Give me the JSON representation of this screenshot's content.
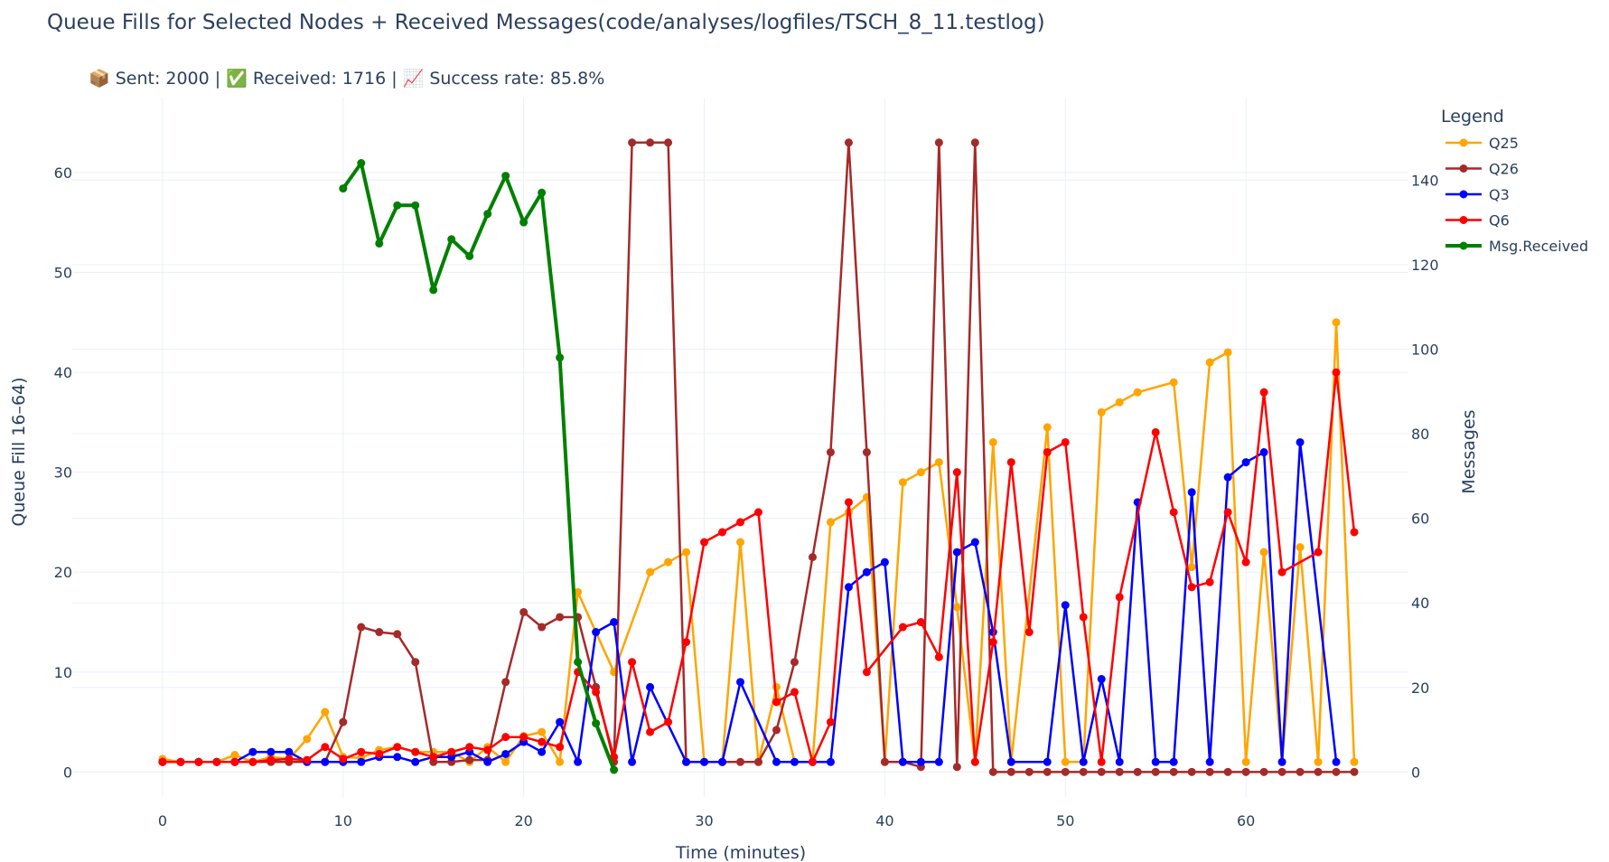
{
  "chart_data": {
    "type": "line",
    "title": "Queue Fills for Selected Nodes + Received Messages(code/analyses/logfiles/TSCH_8_11.testlog)",
    "subtitle": "📦 Sent: 2000 | ✅ Received: 1716 | 📈 Success rate: 85.8%",
    "xlabel": "Time (minutes)",
    "ylabel": "Queue Fill 16–64)",
    "y2label": "Messages",
    "xlim": [
      -5,
      69
    ],
    "ylim": [
      -2.5,
      67.5
    ],
    "y2lim": [
      -5.9,
      159.5
    ],
    "x_ticks": [
      0,
      10,
      20,
      30,
      40,
      50,
      60
    ],
    "y_ticks": [
      0,
      10,
      20,
      30,
      40,
      50,
      60
    ],
    "y2_ticks": [
      0,
      20,
      40,
      60,
      80,
      100,
      120,
      140
    ],
    "grid": true,
    "legend_title": "Legend",
    "legend_position": "top-right",
    "series": [
      {
        "name": "Q25",
        "color": "#ffa500",
        "axis": "y",
        "x": [
          0,
          1,
          2,
          3,
          4,
          5,
          6,
          7,
          8,
          9,
          10,
          11,
          12,
          13,
          14,
          15,
          16,
          17,
          18,
          19,
          20,
          21,
          22,
          23,
          25,
          27,
          28,
          29,
          30,
          31,
          32,
          33,
          34,
          35,
          36,
          37,
          38,
          39,
          40,
          41,
          42,
          43,
          44,
          45,
          46,
          47,
          49,
          50,
          51,
          52,
          53,
          54,
          56,
          57,
          58,
          59,
          60,
          61,
          62,
          63,
          64,
          65,
          66
        ],
        "y": [
          1.3,
          1,
          1,
          1,
          1.7,
          1,
          1.5,
          1.3,
          3.3,
          6,
          1.5,
          1.4,
          2.2,
          2.5,
          2,
          2,
          2,
          1,
          2.5,
          1,
          3.6,
          4,
          1,
          18,
          10,
          20,
          21,
          22,
          1,
          1,
          23,
          1,
          8.5,
          1,
          1,
          25,
          26,
          27.5,
          1,
          29,
          30,
          31,
          16.5,
          1,
          33,
          1,
          34.5,
          1,
          1,
          36,
          37,
          38,
          39,
          20.5,
          41,
          42,
          1,
          22,
          1,
          22.5,
          1,
          45,
          1
        ]
      },
      {
        "name": "Q26",
        "color": "#a52a2a",
        "axis": "y",
        "x": [
          0,
          1,
          2,
          3,
          4,
          5,
          6,
          7,
          8,
          9,
          10,
          11,
          12,
          13,
          14,
          15,
          16,
          17,
          18,
          19,
          20,
          21,
          22,
          23,
          24,
          25,
          26,
          27,
          28,
          29,
          30,
          31,
          32,
          33,
          34,
          35,
          36,
          37,
          38,
          39,
          40,
          41,
          42,
          43,
          44,
          45,
          46,
          47,
          48,
          49,
          50,
          51,
          52,
          53,
          54,
          55,
          56,
          57,
          58,
          59,
          60,
          61,
          62,
          63,
          64,
          65,
          66
        ],
        "y": [
          1,
          1,
          1,
          1,
          1,
          1,
          1,
          1,
          1,
          1,
          5,
          14.5,
          14,
          13.8,
          11,
          1,
          1,
          1.2,
          1.2,
          9,
          16,
          14.5,
          15.5,
          15.5,
          8.5,
          1,
          63,
          63,
          63,
          1,
          1,
          1,
          1,
          1,
          4.2,
          11,
          21.5,
          32,
          63,
          32,
          1,
          1,
          0.5,
          63,
          0.5,
          63,
          0,
          0,
          0,
          0,
          0,
          0,
          0,
          0,
          0,
          0,
          0,
          0,
          0,
          0,
          0,
          0,
          0,
          0,
          0,
          0,
          0
        ]
      },
      {
        "name": "Q3",
        "color": "#0000ff",
        "axis": "y",
        "x": [
          0,
          1,
          2,
          3,
          4,
          5,
          6,
          7,
          8,
          9,
          10,
          11,
          12,
          13,
          14,
          15,
          16,
          17,
          18,
          19,
          20,
          21,
          22,
          23,
          24,
          25,
          26,
          27,
          29,
          30,
          31,
          32,
          34,
          35,
          36,
          37,
          38,
          39,
          40,
          41,
          42,
          43,
          44,
          45,
          46,
          47,
          49,
          50,
          51,
          52,
          53,
          54,
          55,
          56,
          57,
          58,
          59,
          60,
          61,
          62,
          63,
          65
        ],
        "y": [
          1,
          1,
          1,
          1,
          1,
          2,
          2,
          2,
          1,
          1,
          1,
          1,
          1.5,
          1.5,
          1,
          1.5,
          1.5,
          2,
          1,
          1.8,
          3,
          2,
          5,
          1,
          14,
          15,
          1,
          8.5,
          1,
          1,
          1,
          9,
          1,
          1,
          1,
          1,
          18.5,
          20,
          21,
          1,
          1,
          1,
          22,
          23,
          14,
          1,
          1,
          16.7,
          1,
          9.3,
          1,
          27,
          1,
          1,
          28,
          1,
          29.5,
          31,
          32,
          1,
          33,
          1
        ]
      },
      {
        "name": "Q6",
        "color": "#ff0000",
        "axis": "y",
        "x": [
          0,
          1,
          2,
          3,
          4,
          5,
          6,
          7,
          8,
          9,
          10,
          11,
          12,
          13,
          14,
          15,
          16,
          17,
          18,
          19,
          20,
          21,
          22,
          23,
          24,
          25,
          26,
          27,
          28,
          29,
          30,
          31,
          32,
          33,
          34,
          35,
          36,
          37,
          38,
          39,
          41,
          42,
          43,
          44,
          45,
          46,
          47,
          48,
          49,
          50,
          51,
          52,
          53,
          55,
          56,
          57,
          58,
          59,
          60,
          61,
          62,
          64,
          65,
          66
        ],
        "y": [
          1,
          1,
          1,
          1,
          1,
          1,
          1.2,
          1.3,
          1.2,
          2.5,
          1.3,
          2,
          1.8,
          2.5,
          2,
          1.5,
          2,
          2.5,
          2.2,
          3.5,
          3.5,
          3,
          2.5,
          10,
          8,
          1.5,
          11,
          4,
          5,
          13,
          23,
          24,
          25,
          26,
          7,
          8,
          1,
          5,
          27,
          10,
          14.5,
          15,
          11.5,
          30,
          1,
          13,
          31,
          14,
          32,
          33,
          15.5,
          1,
          17.5,
          34,
          26,
          18.5,
          19,
          26,
          21,
          38,
          20,
          22,
          40,
          24
        ]
      },
      {
        "name": "Msg.Received",
        "color": "#008000",
        "axis": "y2",
        "x": [
          10,
          11,
          12,
          13,
          14,
          15,
          16,
          17,
          18,
          19,
          20,
          21,
          22,
          23,
          24,
          25
        ],
        "y": [
          138,
          144,
          125,
          134,
          134,
          114,
          126,
          122,
          132,
          141,
          130,
          137,
          98,
          26,
          11.5,
          0.5
        ]
      }
    ]
  }
}
